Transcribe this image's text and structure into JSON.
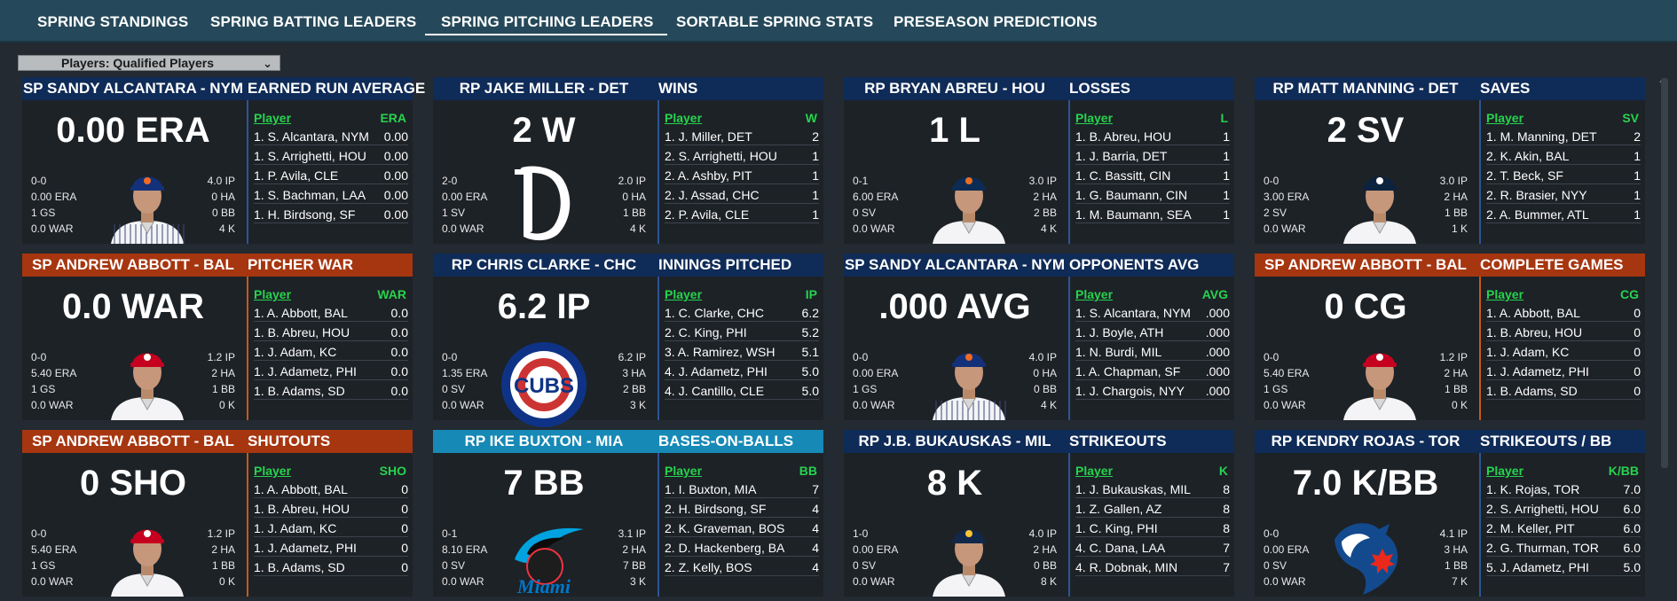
{
  "nav": {
    "tabs": [
      "SPRING STANDINGS",
      "SPRING BATTING LEADERS",
      "SPRING PITCHING LEADERS",
      "SORTABLE SPRING STATS",
      "PRESEASON PREDICTIONS"
    ],
    "active": "SPRING PITCHING LEADERS"
  },
  "filter": {
    "label": "Players: Qualified Players"
  },
  "colors": {
    "blue": "#0f2b57",
    "orange": "#a63610",
    "teal": "#1689b6",
    "leader_header": "#27d34e"
  },
  "cards": [
    {
      "header_name": "SP SANDY ALCANTARA - NYM",
      "header_stat": "EARNED RUN AVERAGE",
      "theme": "blue",
      "big": "0.00 ERA",
      "left_stats": [
        "0-0",
        "0.00 ERA",
        "1 GS",
        "0.0 WAR"
      ],
      "right_stats": [
        "4.0 IP",
        "0 HA",
        "0 BB",
        "4 K"
      ],
      "visual": "portrait-mets",
      "col_player": "Player",
      "col_stat": "ERA",
      "rows": [
        {
          "name": "1. S. Alcantara, NYM",
          "val": "0.00"
        },
        {
          "name": "1. S. Arrighetti, HOU",
          "val": "0.00"
        },
        {
          "name": "1. P. Avila, CLE",
          "val": "0.00"
        },
        {
          "name": "1. S. Bachman, LAA",
          "val": "0.00"
        },
        {
          "name": "1. H. Birdsong, SF",
          "val": "0.00"
        }
      ]
    },
    {
      "header_name": "RP JAKE MILLER - DET",
      "header_stat": "WINS",
      "theme": "blue",
      "big": "2 W",
      "left_stats": [
        "2-0",
        "0.00 ERA",
        "1 SV",
        "0.0 WAR"
      ],
      "right_stats": [
        "2.0 IP",
        "0 HA",
        "1 BB",
        "4 K"
      ],
      "visual": "logo-tigers",
      "col_player": "Player",
      "col_stat": "W",
      "rows": [
        {
          "name": "1. J. Miller, DET",
          "val": "2"
        },
        {
          "name": "2. S. Arrighetti, HOU",
          "val": "1"
        },
        {
          "name": "2. A. Ashby, PIT",
          "val": "1"
        },
        {
          "name": "2. J. Assad, CHC",
          "val": "1"
        },
        {
          "name": "2. P. Avila, CLE",
          "val": "1"
        }
      ]
    },
    {
      "header_name": "RP BRYAN ABREU - HOU",
      "header_stat": "LOSSES",
      "theme": "blue",
      "big": "1 L",
      "left_stats": [
        "0-1",
        "6.00 ERA",
        "0 SV",
        "0.0 WAR"
      ],
      "right_stats": [
        "3.0 IP",
        "2 HA",
        "2 BB",
        "4 K"
      ],
      "visual": "portrait-astros",
      "col_player": "Player",
      "col_stat": "L",
      "rows": [
        {
          "name": "1. B. Abreu, HOU",
          "val": "1"
        },
        {
          "name": "1. J. Barria, DET",
          "val": "1"
        },
        {
          "name": "1. C. Bassitt, CIN",
          "val": "1"
        },
        {
          "name": "1. G. Baumann, CIN",
          "val": "1"
        },
        {
          "name": "1. M. Baumann, SEA",
          "val": "1"
        }
      ]
    },
    {
      "header_name": "RP MATT MANNING - DET",
      "header_stat": "SAVES",
      "theme": "blue",
      "big": "2 SV",
      "left_stats": [
        "0-0",
        "3.00 ERA",
        "2 SV",
        "0.0 WAR"
      ],
      "right_stats": [
        "3.0 IP",
        "2 HA",
        "1 BB",
        "1 K"
      ],
      "visual": "portrait-tigers",
      "col_player": "Player",
      "col_stat": "SV",
      "rows": [
        {
          "name": "1. M. Manning, DET",
          "val": "2"
        },
        {
          "name": "2. K. Akin, BAL",
          "val": "1"
        },
        {
          "name": "2. T. Beck, SF",
          "val": "1"
        },
        {
          "name": "2. R. Brasier, NYY",
          "val": "1"
        },
        {
          "name": "2. A. Bummer, ATL",
          "val": "1"
        }
      ]
    },
    {
      "header_name": "SP ANDREW ABBOTT - BAL",
      "header_stat": "PITCHER WAR",
      "theme": "orange",
      "big": "0.0 WAR",
      "left_stats": [
        "0-0",
        "5.40 ERA",
        "1 GS",
        "0.0 WAR"
      ],
      "right_stats": [
        "1.2 IP",
        "2 HA",
        "1 BB",
        "0 K"
      ],
      "visual": "portrait-reds",
      "col_player": "Player",
      "col_stat": "WAR",
      "rows": [
        {
          "name": "1. A. Abbott, BAL",
          "val": "0.0"
        },
        {
          "name": "1. B. Abreu, HOU",
          "val": "0.0"
        },
        {
          "name": "1. J. Adam, KC",
          "val": "0.0"
        },
        {
          "name": "1. J. Adametz, PHI",
          "val": "0.0"
        },
        {
          "name": "1. B. Adams, SD",
          "val": "0.0"
        }
      ]
    },
    {
      "header_name": "RP CHRIS CLARKE - CHC",
      "header_stat": "INNINGS PITCHED",
      "theme": "blue",
      "big": "6.2 IP",
      "left_stats": [
        "0-0",
        "1.35 ERA",
        "0 SV",
        "0.0 WAR"
      ],
      "right_stats": [
        "6.2 IP",
        "3 HA",
        "2 BB",
        "3 K"
      ],
      "visual": "logo-cubs",
      "logo_text": "CUBS",
      "col_player": "Player",
      "col_stat": "IP",
      "rows": [
        {
          "name": "1. C. Clarke, CHC",
          "val": "6.2"
        },
        {
          "name": "2. C. King, PHI",
          "val": "5.2"
        },
        {
          "name": "3. A. Ramirez, WSH",
          "val": "5.1"
        },
        {
          "name": "4. J. Adametz, PHI",
          "val": "5.0"
        },
        {
          "name": "4. J. Cantillo, CLE",
          "val": "5.0"
        }
      ]
    },
    {
      "header_name": "SP SANDY ALCANTARA - NYM",
      "header_stat": "OPPONENTS AVG",
      "theme": "blue",
      "big": ".000 AVG",
      "left_stats": [
        "0-0",
        "0.00 ERA",
        "1 GS",
        "0.0 WAR"
      ],
      "right_stats": [
        "4.0 IP",
        "0 HA",
        "0 BB",
        "4 K"
      ],
      "visual": "portrait-mets",
      "col_player": "Player",
      "col_stat": "AVG",
      "rows": [
        {
          "name": "1. S. Alcantara, NYM",
          "val": ".000"
        },
        {
          "name": "1. J. Boyle, ATH",
          "val": ".000"
        },
        {
          "name": "1. N. Burdi, MIL",
          "val": ".000"
        },
        {
          "name": "1. A. Chapman, SF",
          "val": ".000"
        },
        {
          "name": "1. J. Chargois, NYY",
          "val": ".000"
        }
      ]
    },
    {
      "header_name": "SP ANDREW ABBOTT - BAL",
      "header_stat": "COMPLETE GAMES",
      "theme": "orange",
      "big": "0 CG",
      "left_stats": [
        "0-0",
        "5.40 ERA",
        "1 GS",
        "0.0 WAR"
      ],
      "right_stats": [
        "1.2 IP",
        "2 HA",
        "1 BB",
        "0 K"
      ],
      "visual": "portrait-reds",
      "col_player": "Player",
      "col_stat": "CG",
      "rows": [
        {
          "name": "1. A. Abbott, BAL",
          "val": "0"
        },
        {
          "name": "1. B. Abreu, HOU",
          "val": "0"
        },
        {
          "name": "1. J. Adam, KC",
          "val": "0"
        },
        {
          "name": "1. J. Adametz, PHI",
          "val": "0"
        },
        {
          "name": "1. B. Adams, SD",
          "val": "0"
        }
      ]
    },
    {
      "header_name": "SP ANDREW ABBOTT - BAL",
      "header_stat": "SHUTOUTS",
      "theme": "orange",
      "big": "0 SHO",
      "left_stats": [
        "0-0",
        "5.40 ERA",
        "1 GS",
        "0.0 WAR"
      ],
      "right_stats": [
        "1.2 IP",
        "2 HA",
        "1 BB",
        "0 K"
      ],
      "visual": "portrait-reds",
      "col_player": "Player",
      "col_stat": "SHO",
      "rows": [
        {
          "name": "1. A. Abbott, BAL",
          "val": "0"
        },
        {
          "name": "1. B. Abreu, HOU",
          "val": "0"
        },
        {
          "name": "1. J. Adam, KC",
          "val": "0"
        },
        {
          "name": "1. J. Adametz, PHI",
          "val": "0"
        },
        {
          "name": "1. B. Adams, SD",
          "val": "0"
        }
      ]
    },
    {
      "header_name": "RP IKE BUXTON - MIA",
      "header_stat": "BASES-ON-BALLS",
      "theme": "teal",
      "big": "7 BB",
      "left_stats": [
        "0-1",
        "8.10 ERA",
        "0 SV",
        "0.0 WAR"
      ],
      "right_stats": [
        "3.1 IP",
        "2 HA",
        "7 BB",
        "3 K"
      ],
      "visual": "logo-marlins",
      "logo_text": "Miami",
      "col_player": "Player",
      "col_stat": "BB",
      "rows": [
        {
          "name": "1. I. Buxton, MIA",
          "val": "7"
        },
        {
          "name": "2. H. Birdsong, SF",
          "val": "4"
        },
        {
          "name": "2. K. Graveman, BOS",
          "val": "4"
        },
        {
          "name": "2. D. Hackenberg, BAL",
          "val": "4"
        },
        {
          "name": "2. Z. Kelly, BOS",
          "val": "4"
        }
      ]
    },
    {
      "header_name": "RP J.B. BUKAUSKAS - MIL",
      "header_stat": "STRIKEOUTS",
      "theme": "blue",
      "big": "8 K",
      "left_stats": [
        "1-0",
        "0.00 ERA",
        "0 SV",
        "0.0 WAR"
      ],
      "right_stats": [
        "4.0 IP",
        "2 HA",
        "0 BB",
        "8 K"
      ],
      "visual": "portrait-brewers",
      "col_player": "Player",
      "col_stat": "K",
      "rows": [
        {
          "name": "1. J. Bukauskas, MIL",
          "val": "8"
        },
        {
          "name": "1. Z. Gallen, AZ",
          "val": "8"
        },
        {
          "name": "1. C. King, PHI",
          "val": "8"
        },
        {
          "name": "4. C. Dana, LAA",
          "val": "7"
        },
        {
          "name": "4. R. Dobnak, MIN",
          "val": "7"
        }
      ]
    },
    {
      "header_name": "RP KENDRY ROJAS - TOR",
      "header_stat": "STRIKEOUTS / BB",
      "theme": "blue",
      "big": "7.0 K/BB",
      "left_stats": [
        "0-0",
        "0.00 ERA",
        "0 SV",
        "0.0 WAR"
      ],
      "right_stats": [
        "4.1 IP",
        "3 HA",
        "1 BB",
        "7 K"
      ],
      "visual": "logo-bluejays",
      "col_player": "Player",
      "col_stat": "K/BB",
      "rows": [
        {
          "name": "1. K. Rojas, TOR",
          "val": "7.0"
        },
        {
          "name": "2. S. Arrighetti, HOU",
          "val": "6.0"
        },
        {
          "name": "2. M. Keller, PIT",
          "val": "6.0"
        },
        {
          "name": "2. G. Thurman, TOR",
          "val": "6.0"
        },
        {
          "name": "5. J. Adametz, PHI",
          "val": "5.0"
        }
      ]
    }
  ]
}
